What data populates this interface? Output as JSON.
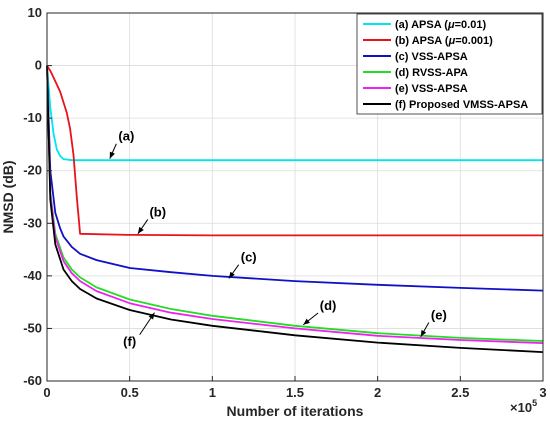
{
  "chart_data": {
    "type": "line",
    "xlabel": "Number of iterations",
    "ylabel": "NMSD (dB)",
    "x_exponent_label": "×10",
    "x_exponent_power": "5",
    "xlim": [
      0,
      3
    ],
    "ylim": [
      -60,
      10
    ],
    "xticks": [
      0,
      0.5,
      1,
      1.5,
      2,
      2.5,
      3
    ],
    "xtick_labels": [
      "0",
      "0.5",
      "1",
      "1.5",
      "2",
      "2.5",
      "3"
    ],
    "yticks": [
      10,
      0,
      -10,
      -20,
      -30,
      -40,
      -50,
      -60
    ],
    "ytick_labels": [
      "10",
      "0",
      "-10",
      "-20",
      "-30",
      "-40",
      "-50",
      "-60"
    ],
    "grid": true,
    "legend_position": "top-right",
    "series": [
      {
        "name": "(a) APSA (μ=0.01)",
        "legend_prefix": "(a) APSA (",
        "legend_mu": "μ",
        "legend_suffix": "=0.01)",
        "color": "#00e5ee",
        "x": [
          0,
          0.02,
          0.04,
          0.06,
          0.08,
          0.1,
          0.15,
          0.2,
          0.5,
          1,
          1.5,
          2,
          2.5,
          3
        ],
        "y": [
          0,
          -8,
          -13,
          -16,
          -17.2,
          -17.8,
          -18,
          -18,
          -18,
          -18,
          -18,
          -18,
          -18,
          -18
        ]
      },
      {
        "name": "(b) APSA (μ=0.001)",
        "legend_prefix": "(b) APSA (",
        "legend_mu": "μ",
        "legend_suffix": "=0.001)",
        "color": "#e8121a",
        "x": [
          0,
          0.02,
          0.05,
          0.08,
          0.1,
          0.12,
          0.14,
          0.16,
          0.18,
          0.2,
          0.5,
          1,
          1.5,
          2,
          2.5,
          3
        ],
        "y": [
          0,
          -1,
          -3,
          -5,
          -7,
          -9,
          -12,
          -17,
          -25,
          -32,
          -32.2,
          -32.3,
          -32.3,
          -32.3,
          -32.3,
          -32.3
        ]
      },
      {
        "name": "(c) VSS-APSA",
        "color": "#1010c8",
        "x": [
          0,
          0.02,
          0.05,
          0.08,
          0.1,
          0.15,
          0.2,
          0.3,
          0.5,
          0.75,
          1,
          1.5,
          2,
          2.5,
          3
        ],
        "y": [
          0,
          -20,
          -28,
          -31,
          -32.5,
          -34.5,
          -35.8,
          -37,
          -38.5,
          -39.3,
          -40,
          -41,
          -41.7,
          -42.3,
          -42.8
        ]
      },
      {
        "name": "(d) RVSS-APA",
        "color": "#22dd22",
        "x": [
          0,
          0.02,
          0.05,
          0.1,
          0.15,
          0.2,
          0.3,
          0.5,
          0.75,
          1,
          1.5,
          2,
          2.5,
          3
        ],
        "y": [
          0,
          -24,
          -32,
          -36.5,
          -38.8,
          -40.3,
          -42.2,
          -44.5,
          -46.3,
          -47.6,
          -49.5,
          -50.9,
          -51.8,
          -52.4
        ]
      },
      {
        "name": "(e) VSS-APSA",
        "color": "#ee22ee",
        "x": [
          0,
          0.02,
          0.05,
          0.1,
          0.15,
          0.2,
          0.3,
          0.5,
          0.75,
          1,
          1.5,
          2,
          2.5,
          3
        ],
        "y": [
          0,
          -24.5,
          -32.6,
          -37.2,
          -39.5,
          -41,
          -42.9,
          -45.2,
          -47,
          -48.2,
          -50,
          -51.4,
          -52.2,
          -52.8
        ]
      },
      {
        "name": "(f) Proposed VMSS-APSA",
        "color": "#000000",
        "x": [
          0,
          0.02,
          0.05,
          0.1,
          0.15,
          0.2,
          0.3,
          0.5,
          0.75,
          1,
          1.5,
          2,
          2.5,
          3
        ],
        "y": [
          0,
          -25.5,
          -34,
          -38.8,
          -41,
          -42.5,
          -44.3,
          -46.5,
          -48.3,
          -49.5,
          -51.3,
          -52.7,
          -53.7,
          -54.5
        ]
      }
    ],
    "annotations": [
      {
        "text": "(a)",
        "x": 0.48,
        "y": -14.3,
        "arrow_x": 0.38,
        "arrow_y": -17.7
      },
      {
        "text": "(b)",
        "x": 0.67,
        "y": -28.7,
        "arrow_x": 0.55,
        "arrow_y": -32
      },
      {
        "text": "(c)",
        "x": 1.22,
        "y": -37.3,
        "arrow_x": 1.1,
        "arrow_y": -40.5
      },
      {
        "text": "(d)",
        "x": 1.7,
        "y": -46.5,
        "arrow_x": 1.55,
        "arrow_y": -49.3
      },
      {
        "text": "(e)",
        "x": 2.37,
        "y": -48.3,
        "arrow_x": 2.26,
        "arrow_y": -51.6
      },
      {
        "text": "(f)",
        "x": 0.5,
        "y": -53.3,
        "arrow_x": 0.65,
        "arrow_y": -47
      }
    ]
  }
}
